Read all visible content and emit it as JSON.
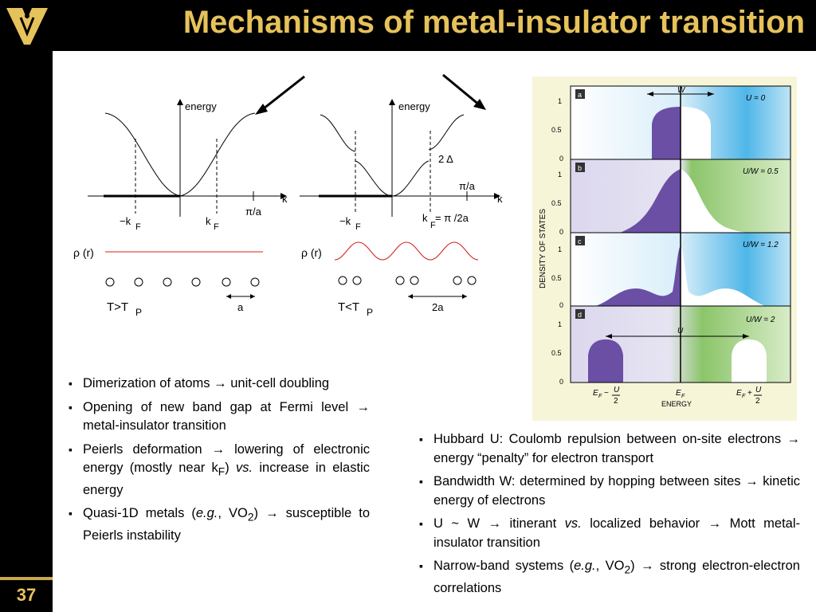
{
  "header": {
    "title": "Mechanisms of metal-insulator transition",
    "page_number": "37"
  },
  "peierls_figure": {
    "panel_left": {
      "axis_energy": "energy",
      "axis_k": "k",
      "neg_kf": "−k",
      "pos_kf": "k",
      "sub_f": "F",
      "pi_a": "π/a",
      "rho": "ρ (r)",
      "temp": "T>T",
      "temp_sub": "P",
      "spacing": "a"
    },
    "panel_right": {
      "axis_energy": "energy",
      "axis_k": "k",
      "neg_kf": "−k",
      "pos_kf": "k",
      "sub_f": "F",
      "kf_eq": "= π /2a",
      "pi_a": "π/a",
      "gap": "2 Δ",
      "rho": "ρ (r)",
      "temp": "T<T",
      "temp_sub": "P",
      "spacing": "2a"
    }
  },
  "hubbard_figure": {
    "y_axis_label": "DENSITY OF STATES",
    "x_axis_label": "ENERGY",
    "ticks": [
      "1",
      "0.5",
      "0"
    ],
    "panels": [
      {
        "letter": "a",
        "ratio": "U = 0",
        "arrow_label": "W"
      },
      {
        "letter": "b",
        "ratio": "U/W = 0.5",
        "arrow_label": ""
      },
      {
        "letter": "c",
        "ratio": "U/W = 1.2",
        "arrow_label": ""
      },
      {
        "letter": "d",
        "ratio": "U/W = 2",
        "arrow_label": "U"
      }
    ],
    "x_ticks": {
      "minus": "E",
      "minus_sub": "F",
      "minus_rest": "−",
      "center": "E",
      "center_sub": "F",
      "plus": "E",
      "plus_sub": "F",
      "plus_rest": "+",
      "frac_num": "U",
      "frac_den": "2"
    }
  },
  "left_bullets": [
    {
      "a": "Dimerization of atoms ",
      "arrow": "→",
      "b": " unit-cell doubling"
    },
    {
      "a": "Opening of new band gap at Fermi level ",
      "arrow": "→",
      "b": " metal-insulator transition"
    },
    {
      "a": "Peierls deformation ",
      "arrow": "→",
      "b": " lowering of electronic energy (mostly near k",
      "sub": "F",
      "c": ") ",
      "em": "vs.",
      "d": " increase in elastic energy"
    },
    {
      "a": "Quasi-1D metals (",
      "em": "e.g.",
      "b": ", VO",
      "sub": "2",
      "c": ") ",
      "arrow": "→",
      "d": " susceptible to Peierls instability"
    }
  ],
  "right_bullets": [
    {
      "a": "Hubbard U:  Coulomb repulsion between on-site electrons ",
      "arrow": "→",
      "b": " energy “penalty” for electron transport"
    },
    {
      "a": "Bandwidth W:  determined by hopping between sites ",
      "arrow": "→",
      "b": " kinetic energy of electrons"
    },
    {
      "a": "U ~ W ",
      "arrow": "→",
      "b": " itinerant ",
      "em": "vs.",
      "c": " localized behavior ",
      "arrow2": "→",
      "d": " Mott metal-insulator transition"
    },
    {
      "a": "Narrow-band systems (",
      "em": "e.g.",
      "b": ", VO",
      "sub": "2",
      "c": ") ",
      "arrow": "→",
      "d": " strong electron-electron correlations"
    }
  ],
  "colors": {
    "gold": "#e6c25a",
    "purple": "#6a4fa5",
    "blue": "#4fb6e8",
    "green": "#8cc56a",
    "red": "#d62020"
  }
}
